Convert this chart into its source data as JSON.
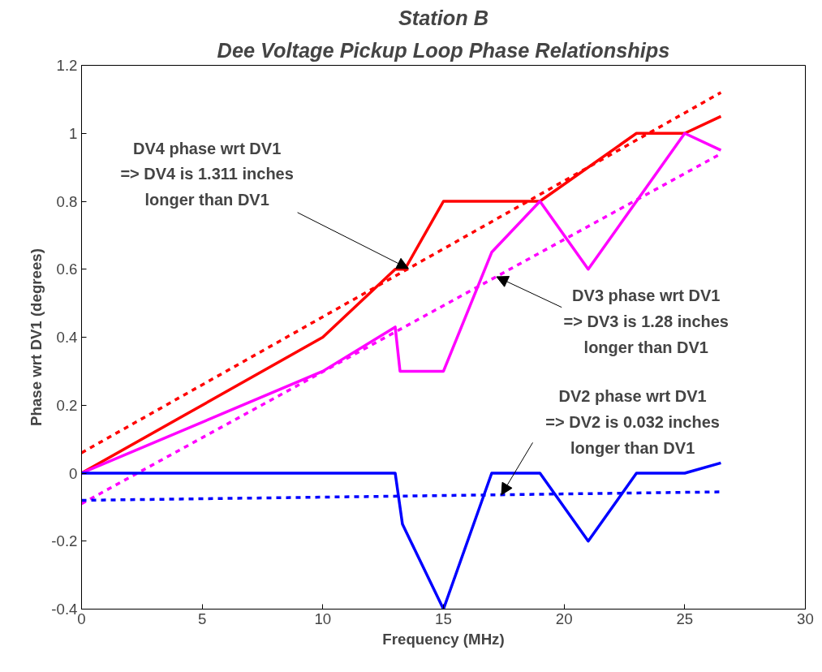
{
  "chart_data": {
    "type": "line",
    "title": "Station B",
    "subtitle": "Dee Voltage Pickup Loop Phase Relationships",
    "xlabel": "Frequency (MHz)",
    "ylabel": "Phase wrt DV1 (degrees)",
    "xlim": [
      0,
      30
    ],
    "ylim": [
      -0.4,
      1.2
    ],
    "xticks": [
      0,
      5,
      10,
      15,
      20,
      25,
      30
    ],
    "yticks": [
      -0.4,
      -0.2,
      0,
      0.2,
      0.4,
      0.6,
      0.8,
      1,
      1.2
    ],
    "series": [
      {
        "color": "#ff0000",
        "line_style": "solid",
        "x": [
          0,
          10,
          13,
          13.4,
          15,
          19,
          23,
          25,
          26.5
        ],
        "values": [
          0,
          0.4,
          0.6,
          0.6,
          0.8,
          0.8,
          1.0,
          1.0,
          1.05
        ]
      },
      {
        "color": "#ff0000",
        "line_style": "dashed",
        "x": [
          0,
          26.5
        ],
        "values": [
          0.06,
          1.12
        ]
      },
      {
        "color": "#ff00ff",
        "line_style": "solid",
        "x": [
          0,
          10,
          13,
          13.2,
          15,
          17,
          19,
          21,
          23,
          25,
          26.5
        ],
        "values": [
          0,
          0.3,
          0.43,
          0.3,
          0.3,
          0.65,
          0.8,
          0.6,
          0.8,
          1.0,
          0.95
        ]
      },
      {
        "color": "#ff00ff",
        "line_style": "dashed",
        "x": [
          0,
          26.5
        ],
        "values": [
          -0.09,
          0.94
        ]
      },
      {
        "color": "#0000ff",
        "line_style": "solid",
        "x": [
          0,
          13,
          13.3,
          15,
          17,
          19,
          21,
          23,
          25,
          26.5
        ],
        "values": [
          0,
          0,
          -0.15,
          -0.4,
          0,
          0,
          -0.2,
          0,
          0,
          0.03
        ]
      },
      {
        "color": "#0000ff",
        "line_style": "dashed",
        "x": [
          0,
          26.5
        ],
        "values": [
          -0.08,
          -0.055
        ]
      }
    ],
    "annotations": [
      {
        "text": "DV4 phase wrt DV1\n=> DV4 is 1.311 inches\nlonger than DV1",
        "x": 13.55,
        "y": 0.602
      },
      {
        "text": "DV3 phase wrt DV1\n=> DV3 is 1.28 inches\nlonger than DV1",
        "x": 17.2,
        "y": 0.578
      },
      {
        "text": "DV2 phase wrt DV1\n=> DV2 is 0.032 inches\nlonger than DV1",
        "x": 17.4,
        "y": -0.064
      }
    ]
  }
}
